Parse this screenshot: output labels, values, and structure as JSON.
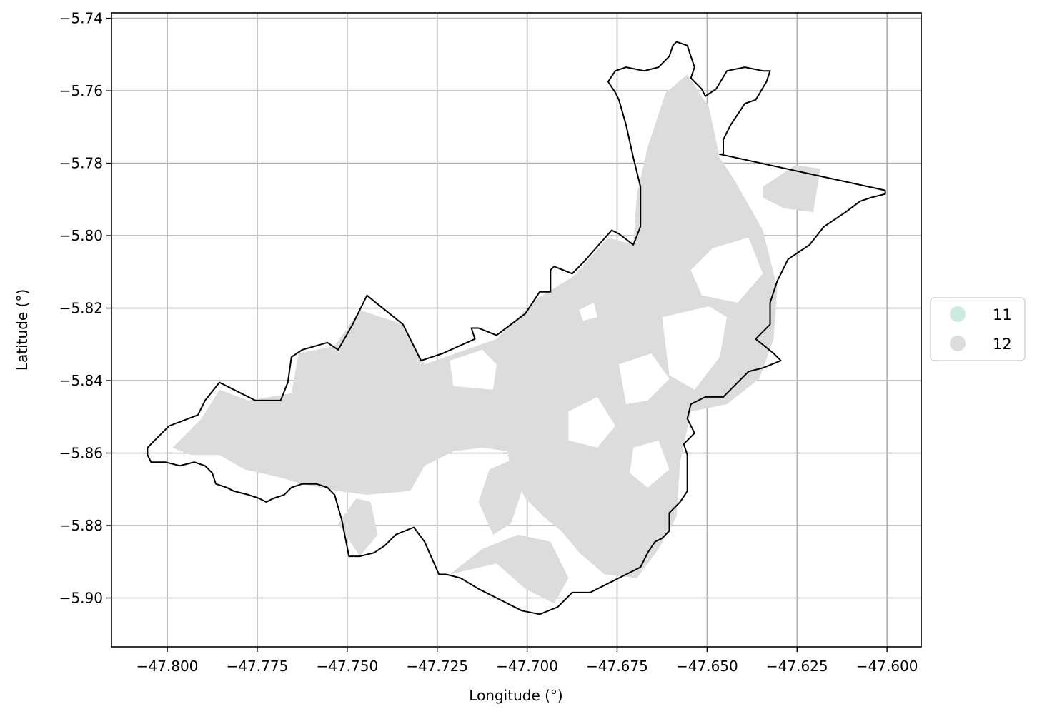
{
  "chart_data": {
    "type": "map",
    "xlabel": "Longitude (°)",
    "ylabel": "Latitude (°)",
    "xlim": [
      -47.8155,
      -47.5905
    ],
    "ylim": [
      -5.9135,
      -5.7385
    ],
    "grid": true,
    "x_ticks": [
      -47.8,
      -47.775,
      -47.75,
      -47.725,
      -47.7,
      -47.675,
      -47.65,
      -47.625,
      -47.6
    ],
    "x_tick_labels": [
      "−47.800",
      "−47.775",
      "−47.750",
      "−47.725",
      "−47.700",
      "−47.675",
      "−47.650",
      "−47.625",
      "−47.600"
    ],
    "y_ticks": [
      -5.74,
      -5.76,
      -5.78,
      -5.8,
      -5.82,
      -5.84,
      -5.86,
      -5.88,
      -5.9
    ],
    "y_tick_labels": [
      "−5.74",
      "−5.76",
      "−5.78",
      "−5.80",
      "−5.82",
      "−5.84",
      "−5.86",
      "−5.88",
      "−5.90"
    ],
    "legend_placement": "right, outside plot",
    "legend": [
      {
        "label": "11",
        "color": "#cdeadf"
      },
      {
        "label": "12",
        "color": "#dcdcdc"
      }
    ],
    "outline_color": "#000000",
    "boundary": [
      [
        -47.8055,
        -5.8585
      ],
      [
        -47.8035,
        -5.8565
      ],
      [
        -47.7995,
        -5.8525
      ],
      [
        -47.7915,
        -5.8495
      ],
      [
        -47.7895,
        -5.8455
      ],
      [
        -47.7855,
        -5.8405
      ],
      [
        -47.7795,
        -5.8435
      ],
      [
        -47.7755,
        -5.8455
      ],
      [
        -47.7685,
        -5.8455
      ],
      [
        -47.7665,
        -5.8405
      ],
      [
        -47.7655,
        -5.8335
      ],
      [
        -47.7625,
        -5.8315
      ],
      [
        -47.7555,
        -5.8295
      ],
      [
        -47.7525,
        -5.8315
      ],
      [
        -47.7485,
        -5.8245
      ],
      [
        -47.7445,
        -5.8165
      ],
      [
        -47.7345,
        -5.8245
      ],
      [
        -47.7295,
        -5.8345
      ],
      [
        -47.7235,
        -5.8325
      ],
      [
        -47.7145,
        -5.8285
      ],
      [
        -47.7155,
        -5.8255
      ],
      [
        -47.7135,
        -5.8255
      ],
      [
        -47.7085,
        -5.8275
      ],
      [
        -47.7005,
        -5.8215
      ],
      [
        -47.6965,
        -5.8155
      ],
      [
        -47.6935,
        -5.8155
      ],
      [
        -47.6935,
        -5.8095
      ],
      [
        -47.6925,
        -5.8085
      ],
      [
        -47.6875,
        -5.8105
      ],
      [
        -47.6845,
        -5.8075
      ],
      [
        -47.6765,
        -5.7985
      ],
      [
        -47.6745,
        -5.7995
      ],
      [
        -47.6705,
        -5.8025
      ],
      [
        -47.6685,
        -5.7975
      ],
      [
        -47.6685,
        -5.7865
      ],
      [
        -47.6705,
        -5.7785
      ],
      [
        -47.6725,
        -5.7695
      ],
      [
        -47.6745,
        -5.7625
      ],
      [
        -47.6755,
        -5.7605
      ],
      [
        -47.6775,
        -5.7575
      ],
      [
        -47.6755,
        -5.7545
      ],
      [
        -47.6725,
        -5.7535
      ],
      [
        -47.6675,
        -5.7545
      ],
      [
        -47.6635,
        -5.7535
      ],
      [
        -47.6605,
        -5.7505
      ],
      [
        -47.6595,
        -5.7475
      ],
      [
        -47.6585,
        -5.7465
      ],
      [
        -47.6555,
        -5.7475
      ],
      [
        -47.6545,
        -5.7505
      ],
      [
        -47.6535,
        -5.7535
      ],
      [
        -47.6545,
        -5.7565
      ],
      [
        -47.6515,
        -5.7595
      ],
      [
        -47.6505,
        -5.7615
      ],
      [
        -47.6475,
        -5.7595
      ],
      [
        -47.6445,
        -5.7545
      ],
      [
        -47.6395,
        -5.7535
      ],
      [
        -47.6345,
        -5.7545
      ],
      [
        -47.6325,
        -5.7545
      ],
      [
        -47.6335,
        -5.7575
      ],
      [
        -47.6365,
        -5.7625
      ],
      [
        -47.6395,
        -5.7635
      ],
      [
        -47.6415,
        -5.7665
      ],
      [
        -47.6435,
        -5.7695
      ],
      [
        -47.6455,
        -5.7735
      ],
      [
        -47.6455,
        -5.7775
      ],
      [
        -47.6465,
        -5.7775
      ],
      [
        -47.6005,
        -5.7875
      ],
      [
        -47.6005,
        -5.7885
      ],
      [
        -47.6045,
        -5.7895
      ],
      [
        -47.6075,
        -5.7905
      ],
      [
        -47.6115,
        -5.7935
      ],
      [
        -47.6175,
        -5.7975
      ],
      [
        -47.6215,
        -5.8025
      ],
      [
        -47.6275,
        -5.8065
      ],
      [
        -47.6305,
        -5.8125
      ],
      [
        -47.6325,
        -5.8185
      ],
      [
        -47.6325,
        -5.8245
      ],
      [
        -47.6365,
        -5.8285
      ],
      [
        -47.6315,
        -5.8325
      ],
      [
        -47.6295,
        -5.8345
      ],
      [
        -47.6345,
        -5.8365
      ],
      [
        -47.6385,
        -5.8375
      ],
      [
        -47.6415,
        -5.8405
      ],
      [
        -47.6455,
        -5.8445
      ],
      [
        -47.6505,
        -5.8445
      ],
      [
        -47.6545,
        -5.8465
      ],
      [
        -47.6555,
        -5.8505
      ],
      [
        -47.6535,
        -5.8545
      ],
      [
        -47.6565,
        -5.8575
      ],
      [
        -47.6555,
        -5.8605
      ],
      [
        -47.6555,
        -5.8655
      ],
      [
        -47.6555,
        -5.8705
      ],
      [
        -47.6575,
        -5.8735
      ],
      [
        -47.6605,
        -5.8765
      ],
      [
        -47.6605,
        -5.8815
      ],
      [
        -47.6625,
        -5.8835
      ],
      [
        -47.6645,
        -5.8845
      ],
      [
        -47.6665,
        -5.8875
      ],
      [
        -47.6685,
        -5.8915
      ],
      [
        -47.6725,
        -5.8935
      ],
      [
        -47.6765,
        -5.8955
      ],
      [
        -47.6825,
        -5.8985
      ],
      [
        -47.6875,
        -5.8985
      ],
      [
        -47.6915,
        -5.9025
      ],
      [
        -47.6965,
        -5.9045
      ],
      [
        -47.7015,
        -5.9035
      ],
      [
        -47.7075,
        -5.9005
      ],
      [
        -47.7135,
        -5.8975
      ],
      [
        -47.7185,
        -5.8945
      ],
      [
        -47.7225,
        -5.8935
      ],
      [
        -47.7245,
        -5.8935
      ],
      [
        -47.7285,
        -5.8845
      ],
      [
        -47.7315,
        -5.8805
      ],
      [
        -47.7365,
        -5.8825
      ],
      [
        -47.7395,
        -5.8855
      ],
      [
        -47.7425,
        -5.8875
      ],
      [
        -47.7465,
        -5.8885
      ],
      [
        -47.7495,
        -5.8885
      ],
      [
        -47.7515,
        -5.8785
      ],
      [
        -47.7535,
        -5.8715
      ],
      [
        -47.7555,
        -5.8695
      ],
      [
        -47.7585,
        -5.8685
      ],
      [
        -47.7625,
        -5.8685
      ],
      [
        -47.7655,
        -5.8695
      ],
      [
        -47.7675,
        -5.8715
      ],
      [
        -47.7705,
        -5.8725
      ],
      [
        -47.7725,
        -5.8735
      ],
      [
        -47.7745,
        -5.8725
      ],
      [
        -47.7775,
        -5.8715
      ],
      [
        -47.7815,
        -5.8705
      ],
      [
        -47.7835,
        -5.8695
      ],
      [
        -47.7865,
        -5.8685
      ],
      [
        -47.7875,
        -5.8655
      ],
      [
        -47.7895,
        -5.8635
      ],
      [
        -47.7925,
        -5.8625
      ],
      [
        -47.7965,
        -5.8635
      ],
      [
        -47.8005,
        -5.8625
      ],
      [
        -47.8045,
        -5.8625
      ],
      [
        -47.8055,
        -5.8605
      ]
    ],
    "regions": [
      {
        "class": "12",
        "polygon": [
          [
            -47.7985,
            -5.8585
          ],
          [
            -47.7905,
            -5.8505
          ],
          [
            -47.7855,
            -5.8425
          ],
          [
            -47.7775,
            -5.8455
          ],
          [
            -47.7655,
            -5.8435
          ],
          [
            -47.7635,
            -5.8325
          ],
          [
            -47.7535,
            -5.8305
          ],
          [
            -47.7465,
            -5.8205
          ],
          [
            -47.7345,
            -5.8245
          ],
          [
            -47.7285,
            -5.8355
          ],
          [
            -47.7085,
            -5.8285
          ],
          [
            -47.6975,
            -5.8175
          ],
          [
            -47.6875,
            -5.8115
          ],
          [
            -47.6775,
            -5.8005
          ],
          [
            -47.6705,
            -5.8025
          ],
          [
            -47.6695,
            -5.7885
          ],
          [
            -47.6665,
            -5.7755
          ],
          [
            -47.6615,
            -5.7605
          ],
          [
            -47.6555,
            -5.7555
          ],
          [
            -47.6495,
            -5.7645
          ],
          [
            -47.6465,
            -5.7785
          ],
          [
            -47.6425,
            -5.7845
          ],
          [
            -47.6345,
            -5.7985
          ],
          [
            -47.6305,
            -5.8145
          ],
          [
            -47.6315,
            -5.8285
          ],
          [
            -47.6355,
            -5.8395
          ],
          [
            -47.6445,
            -5.8465
          ],
          [
            -47.6545,
            -5.8485
          ],
          [
            -47.6575,
            -5.8625
          ],
          [
            -47.6585,
            -5.8775
          ],
          [
            -47.6635,
            -5.8865
          ],
          [
            -47.6695,
            -5.8945
          ],
          [
            -47.6785,
            -5.8935
          ],
          [
            -47.6855,
            -5.8875
          ],
          [
            -47.6905,
            -5.8815
          ],
          [
            -47.6955,
            -5.8775
          ],
          [
            -47.7005,
            -5.8725
          ],
          [
            -47.7045,
            -5.8645
          ],
          [
            -47.7055,
            -5.8595
          ],
          [
            -47.7125,
            -5.8585
          ],
          [
            -47.7205,
            -5.8595
          ],
          [
            -47.7285,
            -5.8635
          ],
          [
            -47.7325,
            -5.8705
          ],
          [
            -47.7445,
            -5.8715
          ],
          [
            -47.7525,
            -5.8705
          ],
          [
            -47.7625,
            -5.8685
          ],
          [
            -47.7695,
            -5.8665
          ],
          [
            -47.7785,
            -5.8645
          ],
          [
            -47.7855,
            -5.8605
          ],
          [
            -47.7935,
            -5.8605
          ]
        ]
      },
      {
        "class": "12",
        "polygon": [
          [
            -47.6345,
            -5.7865
          ],
          [
            -47.6255,
            -5.7805
          ],
          [
            -47.6185,
            -5.7815
          ],
          [
            -47.6205,
            -5.7935
          ],
          [
            -47.6285,
            -5.7925
          ],
          [
            -47.6345,
            -5.7895
          ]
        ]
      },
      {
        "class": "12",
        "polygon": [
          [
            -47.7525,
            -5.8795
          ],
          [
            -47.7475,
            -5.8725
          ],
          [
            -47.7435,
            -5.8735
          ],
          [
            -47.7415,
            -5.8825
          ],
          [
            -47.7465,
            -5.8885
          ]
        ]
      },
      {
        "class": "12",
        "polygon": [
          [
            -47.7215,
            -5.8935
          ],
          [
            -47.7085,
            -5.8905
          ],
          [
            -47.7005,
            -5.8975
          ],
          [
            -47.6925,
            -5.9015
          ],
          [
            -47.6885,
            -5.8945
          ],
          [
            -47.6935,
            -5.8845
          ],
          [
            -47.7025,
            -5.8825
          ],
          [
            -47.7125,
            -5.8865
          ]
        ]
      },
      {
        "class": "12",
        "polygon": [
          [
            -47.7135,
            -5.8735
          ],
          [
            -47.7105,
            -5.8645
          ],
          [
            -47.7035,
            -5.8615
          ],
          [
            -47.7015,
            -5.8705
          ],
          [
            -47.7045,
            -5.8795
          ],
          [
            -47.7095,
            -5.8825
          ]
        ]
      }
    ],
    "holes": [
      {
        "polygon": [
          [
            -47.7215,
            -5.8345
          ],
          [
            -47.7125,
            -5.8315
          ],
          [
            -47.7085,
            -5.8355
          ],
          [
            -47.7095,
            -5.8425
          ],
          [
            -47.7205,
            -5.8415
          ]
        ]
      },
      {
        "polygon": [
          [
            -47.6855,
            -5.8205
          ],
          [
            -47.6815,
            -5.8185
          ],
          [
            -47.6805,
            -5.8225
          ],
          [
            -47.6845,
            -5.8235
          ]
        ]
      },
      {
        "polygon": [
          [
            -47.6625,
            -5.8225
          ],
          [
            -47.6495,
            -5.8195
          ],
          [
            -47.6445,
            -5.8225
          ],
          [
            -47.6465,
            -5.8335
          ],
          [
            -47.6535,
            -5.8425
          ],
          [
            -47.6605,
            -5.8385
          ]
        ]
      },
      {
        "polygon": [
          [
            -47.6545,
            -5.8095
          ],
          [
            -47.6485,
            -5.8035
          ],
          [
            -47.6385,
            -5.8005
          ],
          [
            -47.6345,
            -5.8105
          ],
          [
            -47.6415,
            -5.8185
          ],
          [
            -47.6515,
            -5.8165
          ]
        ]
      },
      {
        "polygon": [
          [
            -47.6745,
            -5.8355
          ],
          [
            -47.6655,
            -5.8325
          ],
          [
            -47.6605,
            -5.8395
          ],
          [
            -47.6665,
            -5.8455
          ],
          [
            -47.6725,
            -5.8465
          ]
        ]
      },
      {
        "polygon": [
          [
            -47.6885,
            -5.8485
          ],
          [
            -47.6805,
            -5.8445
          ],
          [
            -47.6755,
            -5.8525
          ],
          [
            -47.6805,
            -5.8585
          ],
          [
            -47.6885,
            -5.8565
          ]
        ]
      },
      {
        "polygon": [
          [
            -47.6705,
            -5.8585
          ],
          [
            -47.6635,
            -5.8565
          ],
          [
            -47.6605,
            -5.8645
          ],
          [
            -47.6665,
            -5.8695
          ],
          [
            -47.6715,
            -5.8655
          ]
        ]
      }
    ]
  }
}
